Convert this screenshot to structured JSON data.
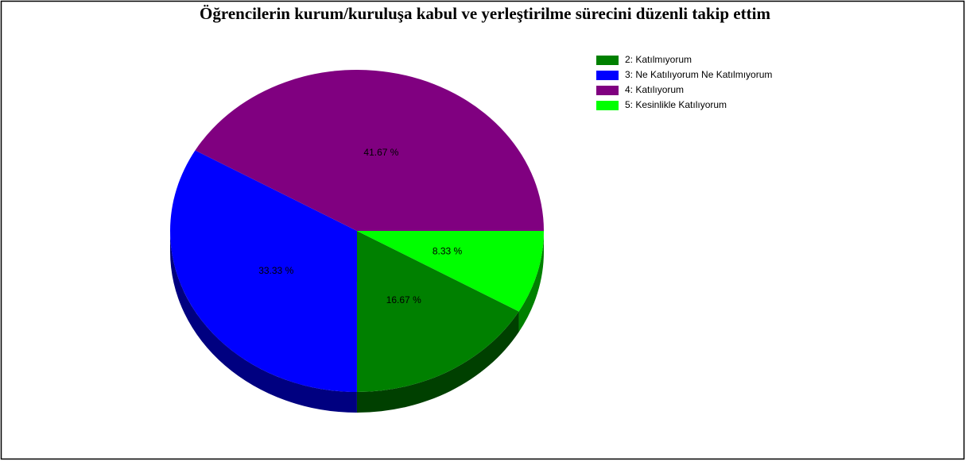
{
  "chart_data": {
    "type": "pie",
    "title": "Öğrencilerin kurum/kuruluşa kabul ve yerleştirilme sürecini düzenli takip ettim",
    "categories": [
      "2: Katılmıyorum",
      "3: Ne Katılıyorum Ne Katılmıyorum",
      "4: Katılıyorum",
      "5: Kesinlikle Katılıyorum"
    ],
    "values": [
      16.67,
      33.33,
      41.67,
      8.33
    ],
    "value_labels": [
      "16.67 %",
      "33.33 %",
      "41.67 %",
      "8.33 %"
    ],
    "colors": [
      "#008000",
      "#0000ff",
      "#800080",
      "#00ff00"
    ],
    "legend": "top-right"
  }
}
